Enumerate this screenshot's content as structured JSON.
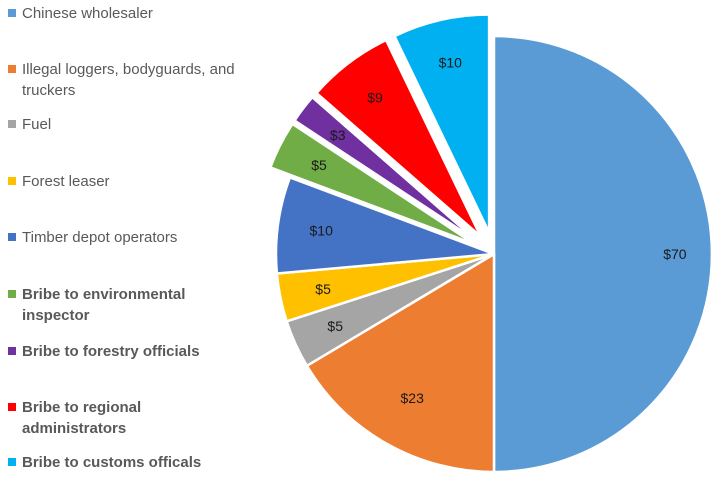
{
  "chart_data": {
    "type": "pie",
    "title": "",
    "legend_position": "left",
    "categories": [
      "Chinese wholesaler",
      "Illegal loggers, bodyguards, and truckers",
      "Fuel",
      "Forest leaser",
      "Timber depot operators",
      "Bribe to environmental inspector",
      "Bribe to forestry officials",
      "Bribe to regional administrators",
      "Bribe to customs officals"
    ],
    "values": [
      70,
      23,
      5,
      5,
      10,
      5,
      3,
      9,
      10
    ],
    "data_labels": [
      "$70",
      "$23",
      "$5",
      "$5",
      "$10",
      "$5",
      "$3",
      "$9",
      "$10"
    ],
    "colors": [
      "#5b9bd5",
      "#ed7d31",
      "#a5a5a5",
      "#ffc000",
      "#4472c4",
      "#70ad47",
      "#7030a0",
      "#ff0000",
      "#00b0f0"
    ],
    "exploded": [
      false,
      false,
      false,
      false,
      false,
      true,
      true,
      true,
      true
    ],
    "bold_legend": [
      false,
      false,
      false,
      false,
      false,
      true,
      true,
      true,
      true
    ]
  }
}
